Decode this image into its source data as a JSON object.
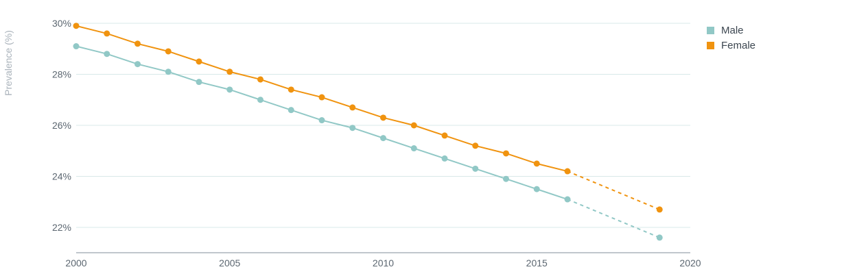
{
  "chart_data": {
    "type": "line",
    "title": "",
    "xlabel": "",
    "ylabel": "Prevalence (%)",
    "xlim": [
      2000,
      2020
    ],
    "ylim": [
      21,
      30
    ],
    "x_ticks": [
      "2000",
      "2005",
      "2010",
      "2015",
      "2020"
    ],
    "y_ticks": [
      "22%",
      "24%",
      "26%",
      "28%",
      "30%"
    ],
    "grid": true,
    "legend_position": "top-right",
    "series": [
      {
        "name": "Male",
        "color": "#91c8c6",
        "x": [
          2000,
          2001,
          2002,
          2003,
          2004,
          2005,
          2006,
          2007,
          2008,
          2009,
          2010,
          2011,
          2012,
          2013,
          2014,
          2015,
          2016
        ],
        "values": [
          29.1,
          28.8,
          28.4,
          28.1,
          27.7,
          27.4,
          27.0,
          26.6,
          26.2,
          25.9,
          25.5,
          25.1,
          24.7,
          24.3,
          23.9,
          23.5,
          23.1
        ],
        "projection": {
          "x": [
            2016,
            2019
          ],
          "values": [
            23.1,
            21.6
          ]
        }
      },
      {
        "name": "Female",
        "color": "#f0930f",
        "x": [
          2000,
          2001,
          2002,
          2003,
          2004,
          2005,
          2006,
          2007,
          2008,
          2009,
          2010,
          2011,
          2012,
          2013,
          2014,
          2015,
          2016
        ],
        "values": [
          29.9,
          29.6,
          29.2,
          28.9,
          28.5,
          28.1,
          27.8,
          27.4,
          27.1,
          26.7,
          26.3,
          26.0,
          25.6,
          25.2,
          24.9,
          24.5,
          24.2
        ],
        "projection": {
          "x": [
            2016,
            2019
          ],
          "values": [
            24.2,
            22.7
          ]
        }
      }
    ]
  }
}
